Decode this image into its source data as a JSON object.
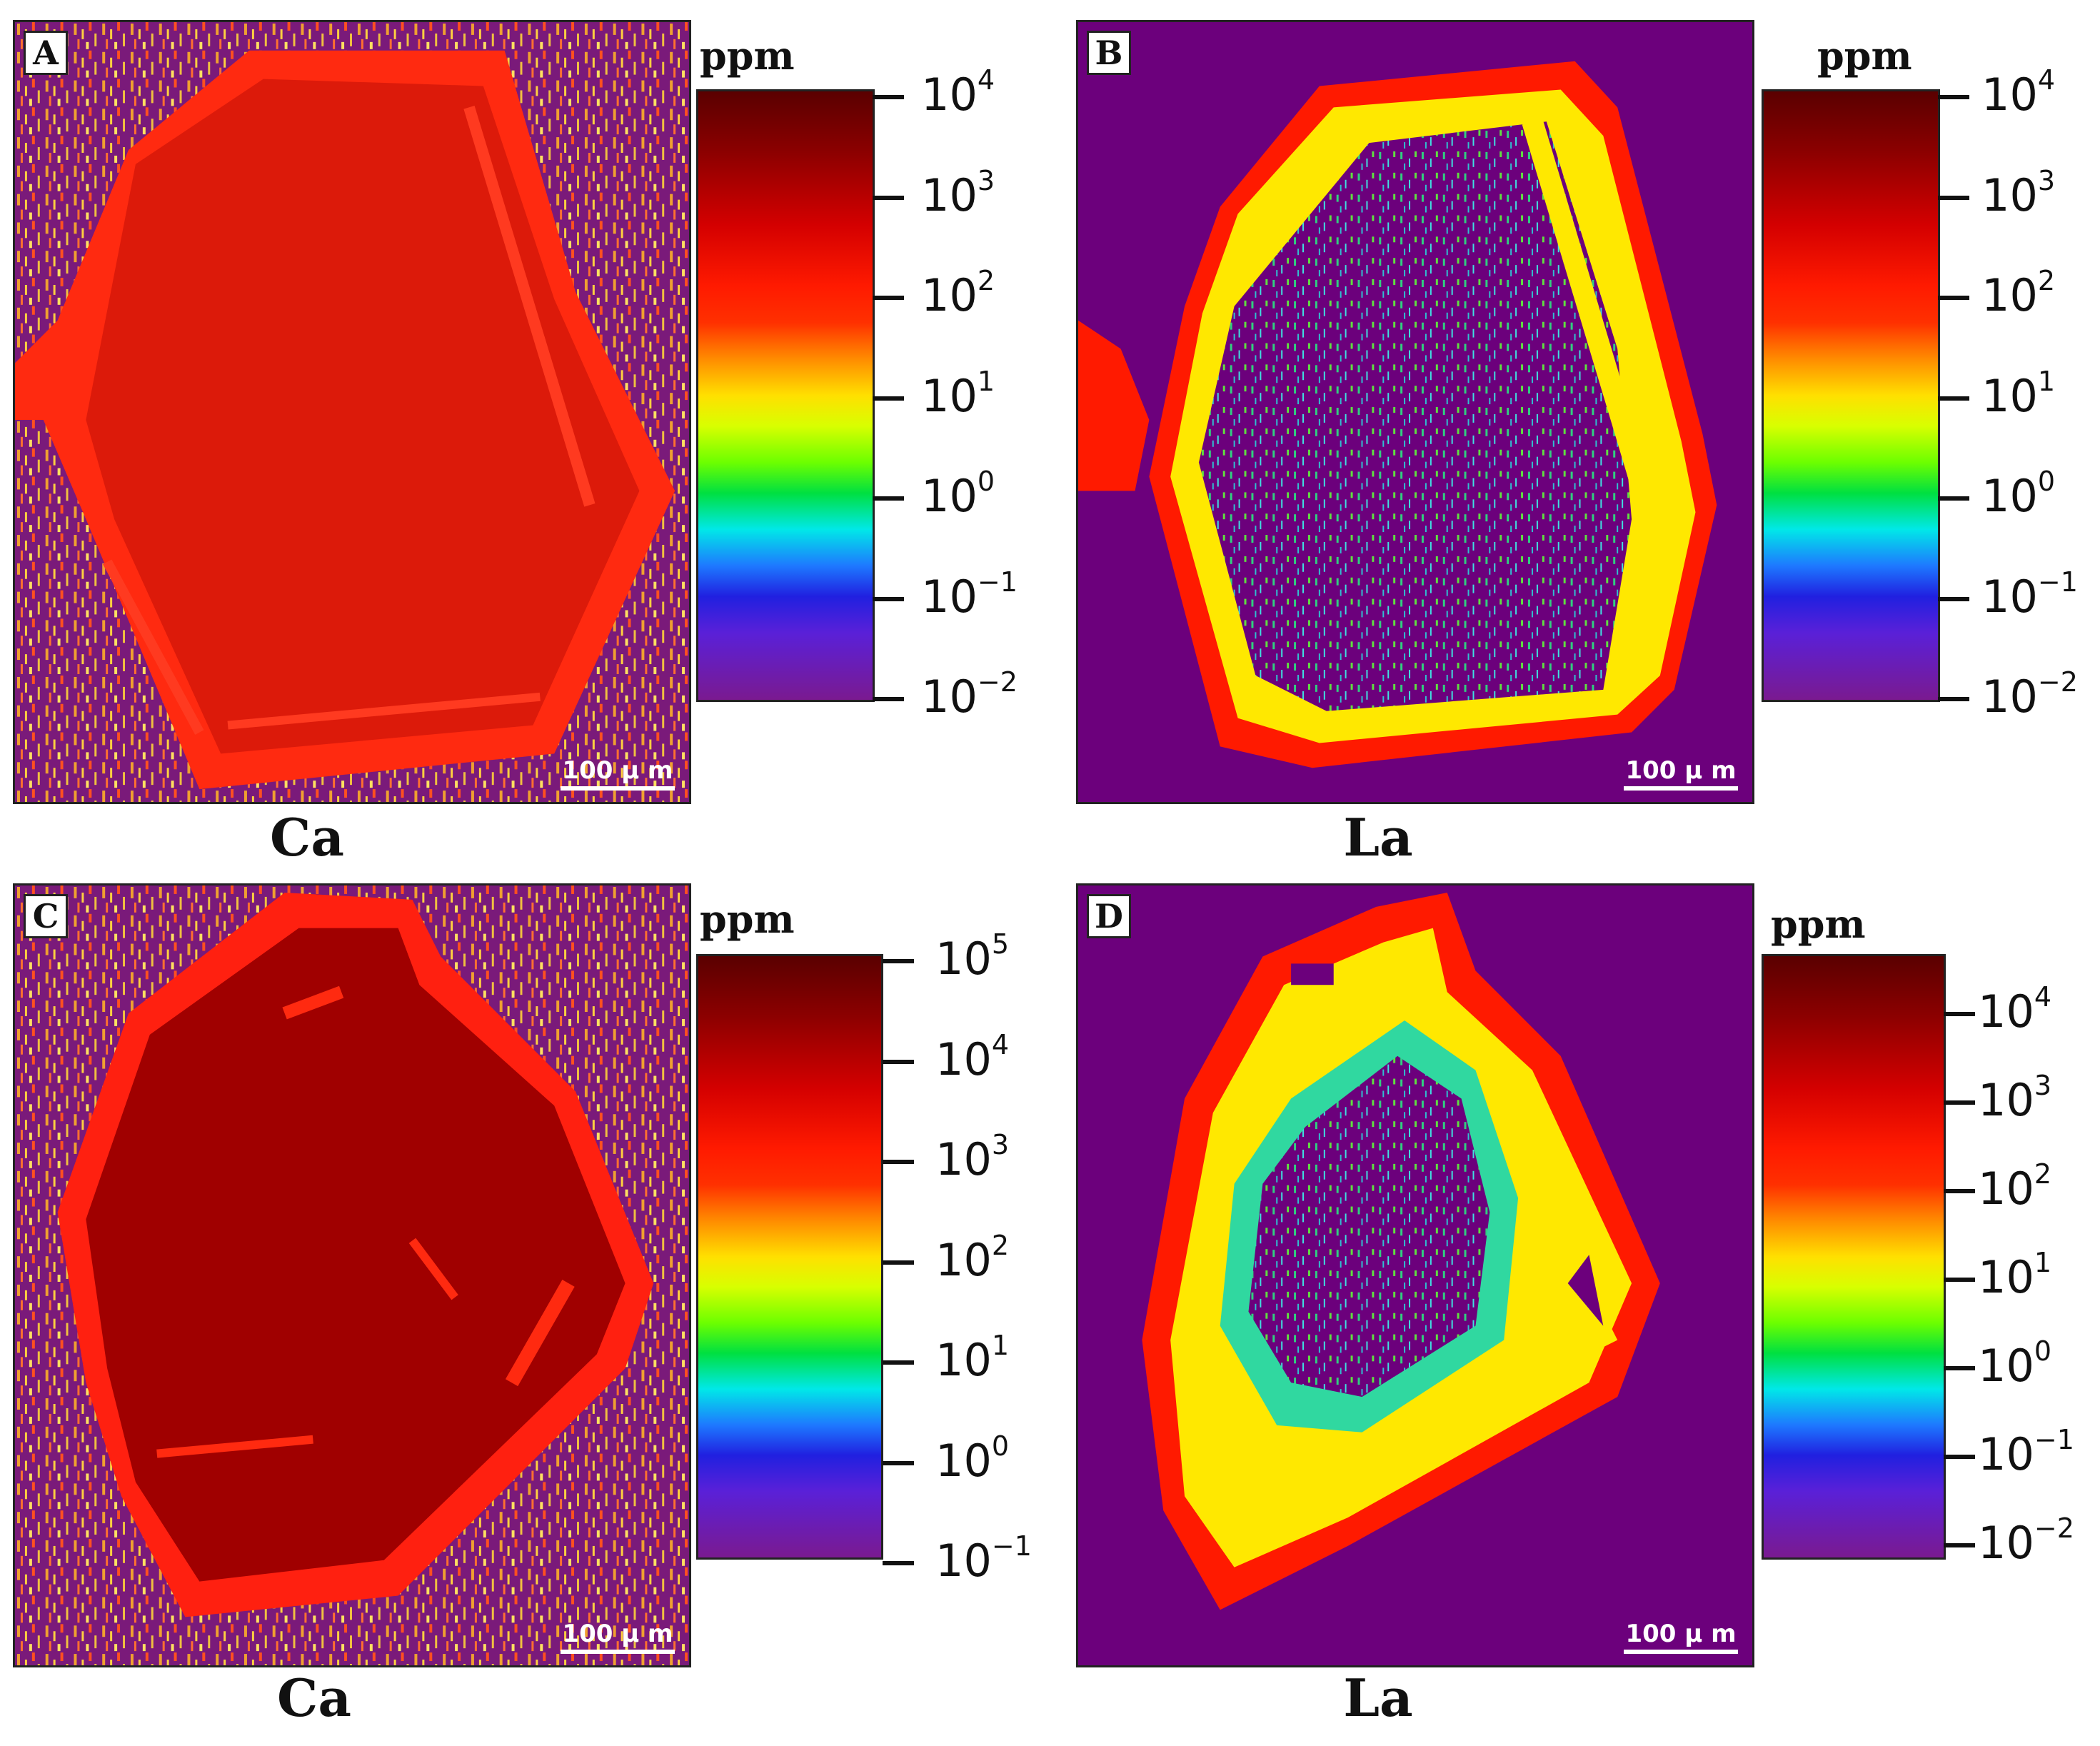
{
  "panels": [
    {
      "letter": "A",
      "element": "Ca",
      "unit": "ppm",
      "scale_bar": "100 μ m",
      "colorbar_exponents": [
        "4",
        "3",
        "2",
        "1",
        "0",
        "−1",
        "−2"
      ]
    },
    {
      "letter": "B",
      "element": "La",
      "unit": "ppm",
      "scale_bar": "100 μ m",
      "colorbar_exponents": [
        "4",
        "3",
        "2",
        "1",
        "0",
        "−1",
        "−2"
      ]
    },
    {
      "letter": "C",
      "element": "Ca",
      "unit": "ppm",
      "scale_bar": "100 μ m",
      "colorbar_exponents": [
        "5",
        "4",
        "3",
        "2",
        "1",
        "0",
        "−1"
      ]
    },
    {
      "letter": "D",
      "element": "La",
      "unit": "ppm",
      "scale_bar": "100 μ m",
      "colorbar_exponents": [
        "4",
        "3",
        "2",
        "1",
        "0",
        "−1",
        "−2"
      ]
    }
  ],
  "colorbar_base": "10",
  "colors": {
    "background_noise": "#7a1a7a",
    "high": "#c00000",
    "medium": "#ff1a00",
    "low_yellow": "#ffee00",
    "low_green": "#20e060",
    "zero_purple": "#6c007c"
  }
}
